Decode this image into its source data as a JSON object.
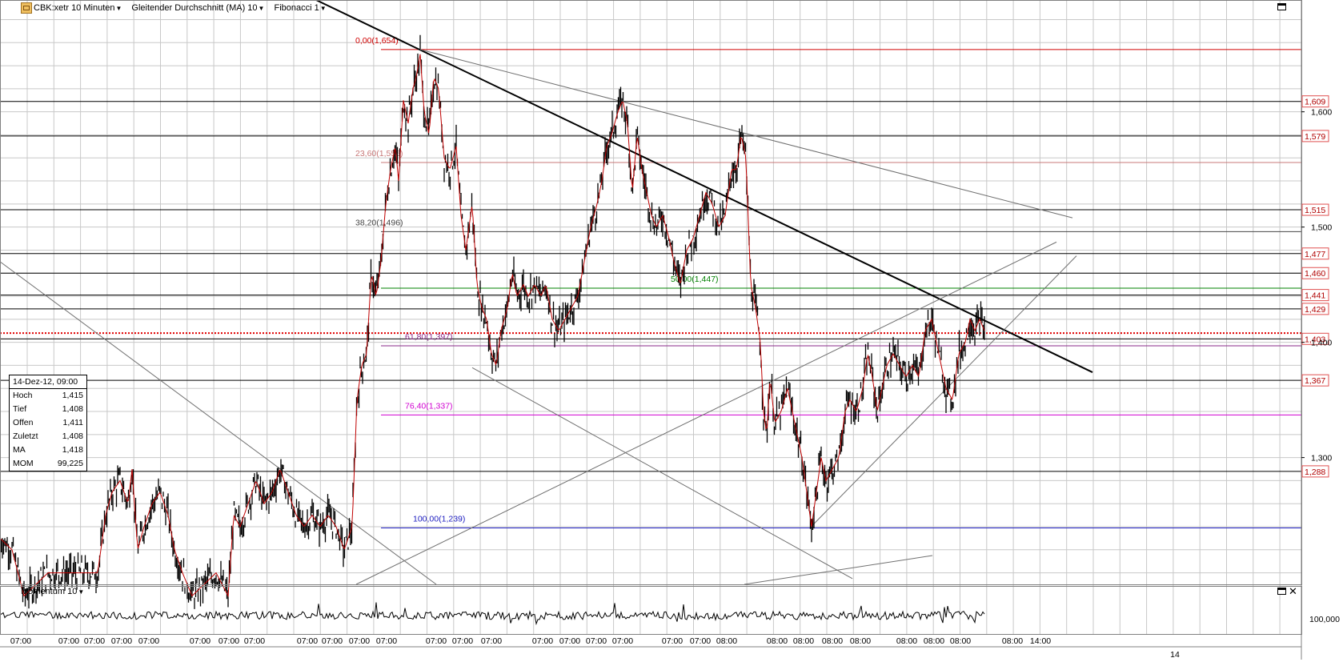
{
  "toolbar": {
    "symbol": "CBK:xetr 10 Minuten",
    "indicator1": "Gleitender Durchschnitt (MA) 10",
    "indicator2": "Fibonacci 1"
  },
  "momentum_panel": {
    "label": "Momentum 10",
    "axis_label": "100,000"
  },
  "infobox": {
    "date": "14-Dez-12, 09:00",
    "rows": [
      {
        "label": "Hoch",
        "value": "1,415"
      },
      {
        "label": "Tief",
        "value": "1,408"
      },
      {
        "label": "Offen",
        "value": "1,411"
      },
      {
        "label": "Zuletzt",
        "value": "1,408"
      },
      {
        "label": "MA",
        "value": "1,418"
      },
      {
        "label": "MOM",
        "value": "99,225"
      }
    ]
  },
  "colors": {
    "grid": "#c8c8c8",
    "candle": "#000000",
    "ma": "#c00000",
    "fib0": "#d00000",
    "fib236": "#c87878",
    "fib382": "#444444",
    "fib50": "#008000",
    "fib618": "#8a2a8a",
    "fib764": "#d000d0",
    "fib100": "#2020c0",
    "current": "#e00000"
  },
  "chart_data": {
    "type": "line",
    "title": "CBK:xetr 10 Minuten",
    "ylim": [
      1.19,
      1.697
    ],
    "y_axis_ticks": [
      "1,300",
      "1,400",
      "1,500",
      "1,600"
    ],
    "x_axis_ticks": [
      "07:00",
      "07:00",
      "07:00",
      "07:00",
      "07:00",
      "07:00",
      "07:00",
      "07:00",
      "07:00",
      "07:00",
      "07:00",
      "07:00",
      "07:00",
      "07:00",
      "07:00",
      "07:00",
      "07:00",
      "07:00",
      "07:00",
      "07:00",
      "07:00",
      "08:00",
      "08:00",
      "08:00",
      "08:00",
      "08:00",
      "08:00",
      "08:00",
      "08:00",
      "08:00",
      "14:00"
    ],
    "x_axis_date_label": "14",
    "price_path": [
      [
        0,
        1.23
      ],
      [
        15,
        1.22
      ],
      [
        30,
        1.18
      ],
      [
        60,
        1.2
      ],
      [
        90,
        1.2
      ],
      [
        105,
        1.2
      ],
      [
        122,
        1.2
      ],
      [
        132,
        1.25
      ],
      [
        140,
        1.27
      ],
      [
        150,
        1.28
      ],
      [
        160,
        1.26
      ],
      [
        165,
        1.29
      ],
      [
        172,
        1.22
      ],
      [
        180,
        1.24
      ],
      [
        190,
        1.26
      ],
      [
        200,
        1.27
      ],
      [
        210,
        1.25
      ],
      [
        218,
        1.22
      ],
      [
        228,
        1.2
      ],
      [
        240,
        1.18
      ],
      [
        270,
        1.2
      ],
      [
        285,
        1.18
      ],
      [
        292,
        1.25
      ],
      [
        300,
        1.24
      ],
      [
        310,
        1.26
      ],
      [
        320,
        1.28
      ],
      [
        330,
        1.26
      ],
      [
        340,
        1.27
      ],
      [
        350,
        1.29
      ],
      [
        360,
        1.27
      ],
      [
        370,
        1.25
      ],
      [
        380,
        1.24
      ],
      [
        390,
        1.25
      ],
      [
        400,
        1.24
      ],
      [
        410,
        1.25
      ],
      [
        420,
        1.24
      ],
      [
        430,
        1.22
      ],
      [
        440,
        1.24
      ],
      [
        446,
        1.35
      ],
      [
        452,
        1.38
      ],
      [
        458,
        1.39
      ],
      [
        464,
        1.46
      ],
      [
        470,
        1.44
      ],
      [
        476,
        1.47
      ],
      [
        482,
        1.52
      ],
      [
        488,
        1.55
      ],
      [
        494,
        1.57
      ],
      [
        498,
        1.54
      ],
      [
        504,
        1.61
      ],
      [
        510,
        1.59
      ],
      [
        516,
        1.62
      ],
      [
        520,
        1.63
      ],
      [
        525,
        1.65
      ],
      [
        530,
        1.6
      ],
      [
        536,
        1.58
      ],
      [
        542,
        1.63
      ],
      [
        548,
        1.62
      ],
      [
        555,
        1.56
      ],
      [
        562,
        1.55
      ],
      [
        570,
        1.57
      ],
      [
        576,
        1.51
      ],
      [
        582,
        1.48
      ],
      [
        590,
        1.52
      ],
      [
        596,
        1.45
      ],
      [
        602,
        1.43
      ],
      [
        608,
        1.42
      ],
      [
        614,
        1.39
      ],
      [
        620,
        1.38
      ],
      [
        626,
        1.41
      ],
      [
        634,
        1.43
      ],
      [
        640,
        1.46
      ],
      [
        646,
        1.44
      ],
      [
        654,
        1.45
      ],
      [
        660,
        1.44
      ],
      [
        668,
        1.45
      ],
      [
        676,
        1.44
      ],
      [
        682,
        1.45
      ],
      [
        690,
        1.42
      ],
      [
        698,
        1.41
      ],
      [
        706,
        1.42
      ],
      [
        714,
        1.43
      ],
      [
        722,
        1.44
      ],
      [
        730,
        1.47
      ],
      [
        738,
        1.5
      ],
      [
        746,
        1.52
      ],
      [
        752,
        1.54
      ],
      [
        758,
        1.57
      ],
      [
        764,
        1.58
      ],
      [
        772,
        1.6
      ],
      [
        778,
        1.61
      ],
      [
        784,
        1.59
      ],
      [
        790,
        1.53
      ],
      [
        796,
        1.58
      ],
      [
        802,
        1.55
      ],
      [
        808,
        1.53
      ],
      [
        814,
        1.51
      ],
      [
        820,
        1.5
      ],
      [
        828,
        1.51
      ],
      [
        836,
        1.49
      ],
      [
        842,
        1.47
      ],
      [
        850,
        1.45
      ],
      [
        858,
        1.48
      ],
      [
        866,
        1.49
      ],
      [
        874,
        1.51
      ],
      [
        882,
        1.53
      ],
      [
        890,
        1.52
      ],
      [
        898,
        1.5
      ],
      [
        906,
        1.51
      ],
      [
        914,
        1.55
      ],
      [
        920,
        1.55
      ],
      [
        926,
        1.58
      ],
      [
        932,
        1.56
      ],
      [
        938,
        1.45
      ],
      [
        944,
        1.43
      ],
      [
        950,
        1.4
      ],
      [
        954,
        1.34
      ],
      [
        958,
        1.32
      ],
      [
        962,
        1.37
      ],
      [
        968,
        1.33
      ],
      [
        976,
        1.34
      ],
      [
        984,
        1.36
      ],
      [
        990,
        1.34
      ],
      [
        996,
        1.32
      ],
      [
        1002,
        1.3
      ],
      [
        1008,
        1.27
      ],
      [
        1014,
        1.24
      ],
      [
        1020,
        1.27
      ],
      [
        1026,
        1.3
      ],
      [
        1032,
        1.28
      ],
      [
        1040,
        1.29
      ],
      [
        1048,
        1.3
      ],
      [
        1056,
        1.34
      ],
      [
        1062,
        1.35
      ],
      [
        1070,
        1.34
      ],
      [
        1078,
        1.36
      ],
      [
        1084,
        1.39
      ],
      [
        1090,
        1.37
      ],
      [
        1096,
        1.34
      ],
      [
        1102,
        1.36
      ],
      [
        1108,
        1.38
      ],
      [
        1116,
        1.39
      ],
      [
        1124,
        1.38
      ],
      [
        1132,
        1.37
      ],
      [
        1140,
        1.38
      ],
      [
        1148,
        1.37
      ],
      [
        1156,
        1.41
      ],
      [
        1164,
        1.42
      ],
      [
        1170,
        1.4
      ],
      [
        1176,
        1.38
      ],
      [
        1182,
        1.36
      ],
      [
        1190,
        1.35
      ],
      [
        1198,
        1.39
      ],
      [
        1206,
        1.4
      ],
      [
        1212,
        1.42
      ],
      [
        1218,
        1.41
      ],
      [
        1224,
        1.42
      ],
      [
        1230,
        1.41
      ]
    ],
    "fibonacci_levels": [
      {
        "label": "0,00(1,654)",
        "value": 1.654
      },
      {
        "label": "23,60(1,556)",
        "value": 1.556
      },
      {
        "label": "38,20(1,496)",
        "value": 1.496
      },
      {
        "label": "50,00(1,447)",
        "value": 1.447
      },
      {
        "label": "61,80(1,397)",
        "value": 1.397
      },
      {
        "label": "76,40(1,337)",
        "value": 1.337
      },
      {
        "label": "100,00(1,239)",
        "value": 1.239
      }
    ],
    "horizontal_levels": [
      {
        "label": "1,609",
        "value": 1.609
      },
      {
        "label": "1,579",
        "value": 1.579
      },
      {
        "label": "1,515",
        "value": 1.515
      },
      {
        "label": "1,477",
        "value": 1.477
      },
      {
        "label": "1,460",
        "value": 1.46
      },
      {
        "label": "1,441",
        "value": 1.441
      },
      {
        "label": "1,429",
        "value": 1.429
      },
      {
        "label": "1,403",
        "value": 1.403
      },
      {
        "label": "1,367",
        "value": 1.367
      },
      {
        "label": "1,288",
        "value": 1.288
      }
    ],
    "current_price": 1.408,
    "trendlines": [
      {
        "from": [
          395,
          1.697
        ],
        "to": [
          1365,
          1.374
        ]
      },
      {
        "from": [
          525,
          1.654
        ],
        "to": [
          1340,
          1.508
        ]
      },
      {
        "from": [
          0,
          1.47
        ],
        "to": [
          545,
          1.19
        ]
      },
      {
        "from": [
          445,
          1.19
        ],
        "to": [
          1320,
          1.487
        ]
      },
      {
        "from": [
          590,
          1.378
        ],
        "to": [
          1065,
          1.195
        ]
      },
      {
        "from": [
          930,
          1.19
        ],
        "to": [
          1165,
          1.215
        ]
      },
      {
        "from": [
          1012,
          1.239
        ],
        "to": [
          1345,
          1.475
        ]
      }
    ],
    "momentum_baseline": 100.0
  }
}
